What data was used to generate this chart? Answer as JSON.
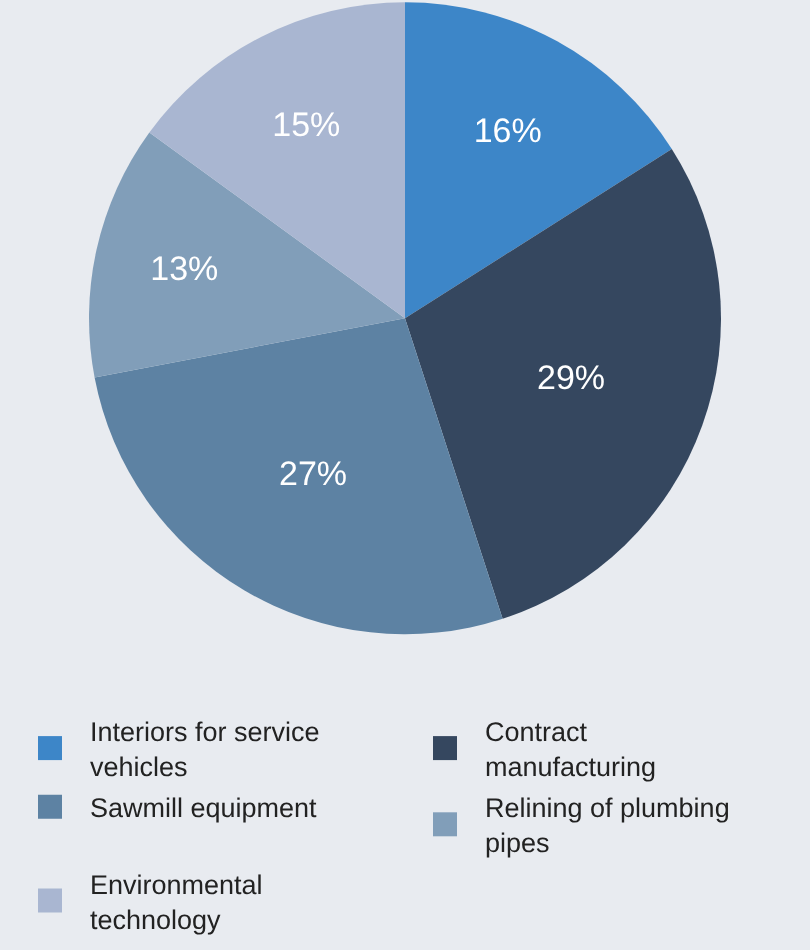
{
  "chart_data": {
    "type": "pie",
    "categories": [
      "Interiors for service vehicles",
      "Contract manufacturing",
      "Sawmill equipment",
      "Relining of plumbing pipes",
      "Environmental technology"
    ],
    "values": [
      16,
      29,
      27,
      13,
      15
    ],
    "colors": [
      "#3d86c8",
      "#35475f",
      "#5d82a3",
      "#819eb9",
      "#a9b6d1"
    ],
    "value_labels": [
      "16%",
      "29%",
      "27%",
      "13%",
      "15%"
    ],
    "legend": "bottom"
  }
}
